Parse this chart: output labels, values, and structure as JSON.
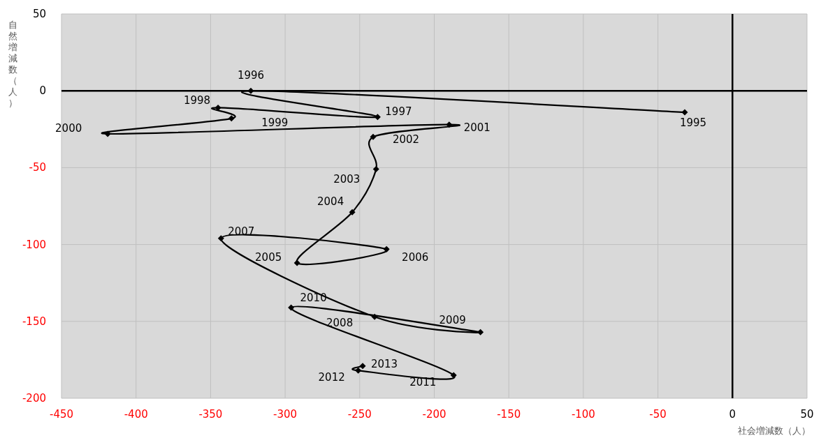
{
  "chart_data": {
    "type": "line",
    "xlabel": "社会増減数（人）",
    "ylabel": "自然増減数（人）",
    "x": [
      -32,
      -323,
      -238,
      -345,
      -336,
      -419,
      -190,
      -241,
      -239,
      -255,
      -292,
      -232,
      -343,
      -240,
      -169,
      -296,
      -187,
      -251,
      -248
    ],
    "values": [
      -14,
      0,
      -17,
      -11,
      -18,
      -28,
      -22,
      -30,
      -51,
      -79,
      -112,
      -103,
      -96,
      -147,
      -157,
      -141,
      -185,
      -182,
      -179
    ],
    "color": "#000000",
    "marker": "diamond",
    "line_style": "solid",
    "grid": true,
    "xlim": [
      -450,
      50
    ],
    "ylim": [
      -200,
      50
    ],
    "xticks": [
      -450,
      -400,
      -350,
      -300,
      -250,
      -200,
      -150,
      -100,
      -50,
      0,
      50
    ],
    "yticks": [
      -200,
      -150,
      -100,
      -50,
      0,
      50
    ],
    "annotations": [
      {
        "text": "1995",
        "x": -32,
        "y": -14
      },
      {
        "text": "1996",
        "x": -323,
        "y": 0
      },
      {
        "text": "1997",
        "x": -238,
        "y": -17
      },
      {
        "text": "1998",
        "x": -345,
        "y": -11
      },
      {
        "text": "1999",
        "x": -336,
        "y": -18
      },
      {
        "text": "2000",
        "x": -419,
        "y": -28
      },
      {
        "text": "2001",
        "x": -190,
        "y": -22
      },
      {
        "text": "2002",
        "x": -241,
        "y": -30
      },
      {
        "text": "2003",
        "x": -239,
        "y": -51
      },
      {
        "text": "2004",
        "x": -255,
        "y": -79
      },
      {
        "text": "2005",
        "x": -292,
        "y": -112
      },
      {
        "text": "2006",
        "x": -232,
        "y": -103
      },
      {
        "text": "2007",
        "x": -343,
        "y": -96
      },
      {
        "text": "2008",
        "x": -240,
        "y": -147
      },
      {
        "text": "2009",
        "x": -169,
        "y": -157
      },
      {
        "text": "2010",
        "x": -296,
        "y": -141
      },
      {
        "text": "2011",
        "x": -187,
        "y": -185
      },
      {
        "text": "2012",
        "x": -251,
        "y": -182
      },
      {
        "text": "2013",
        "x": -248,
        "y": -179
      }
    ]
  }
}
